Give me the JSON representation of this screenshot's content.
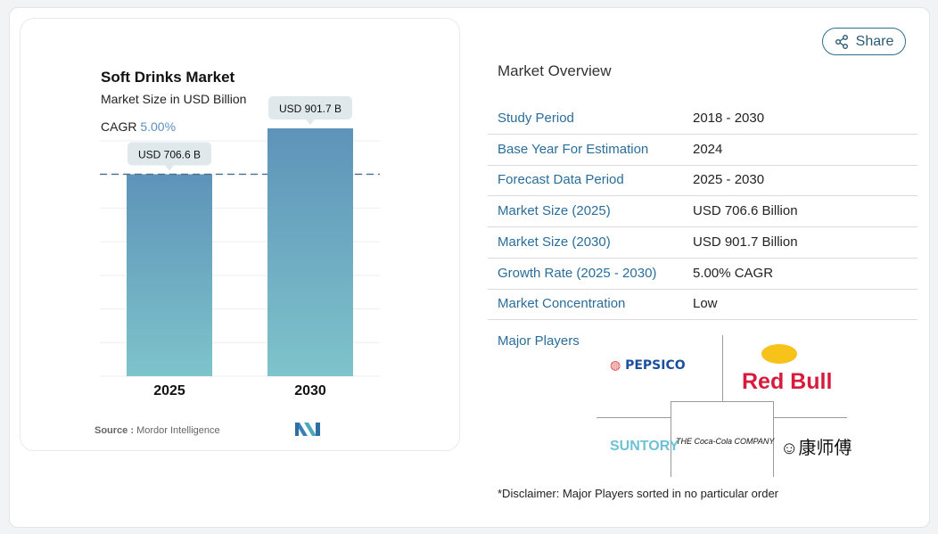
{
  "chart_data": {
    "type": "bar",
    "title": "Soft Drinks Market",
    "subtitle": "Market Size in USD Billion",
    "cagr_label": "CAGR",
    "cagr_value": "5.00%",
    "categories": [
      "2025",
      "2030"
    ],
    "values": [
      706.6,
      901.7
    ],
    "data_labels": [
      "USD 706.6 B",
      "USD 901.7 B"
    ],
    "ylim": [
      0,
      1000
    ],
    "grid": true,
    "reference_line": "dashed at 2025 value",
    "colors": {
      "bar_top": "#5e93b9",
      "bar_bottom": "#7ec4cb",
      "accent": "#5b8fc0"
    },
    "source": "Mordor Intelligence",
    "source_label": "Source :"
  },
  "share_label": "Share",
  "overview": {
    "title": "Market Overview",
    "rows": [
      {
        "k": "Study Period",
        "v": "2018 - 2030"
      },
      {
        "k": "Base Year For Estimation",
        "v": "2024"
      },
      {
        "k": "Forecast Data Period",
        "v": "2025 - 2030"
      },
      {
        "k": "Market Size (2025)",
        "v": "USD 706.6 Billion"
      },
      {
        "k": "Market Size (2030)",
        "v": "USD 901.7 Billion"
      },
      {
        "k": "Growth Rate (2025 - 2030)",
        "v": "5.00% CAGR"
      },
      {
        "k": "Market Concentration",
        "v": "Low"
      }
    ],
    "players_label": "Major Players",
    "players": [
      "PEPSICO",
      "Red Bull",
      "SUNTORY",
      "THE Coca-Cola COMPANY",
      "康师傅"
    ],
    "disclaimer": "*Disclaimer: Major Players sorted in no particular order"
  }
}
